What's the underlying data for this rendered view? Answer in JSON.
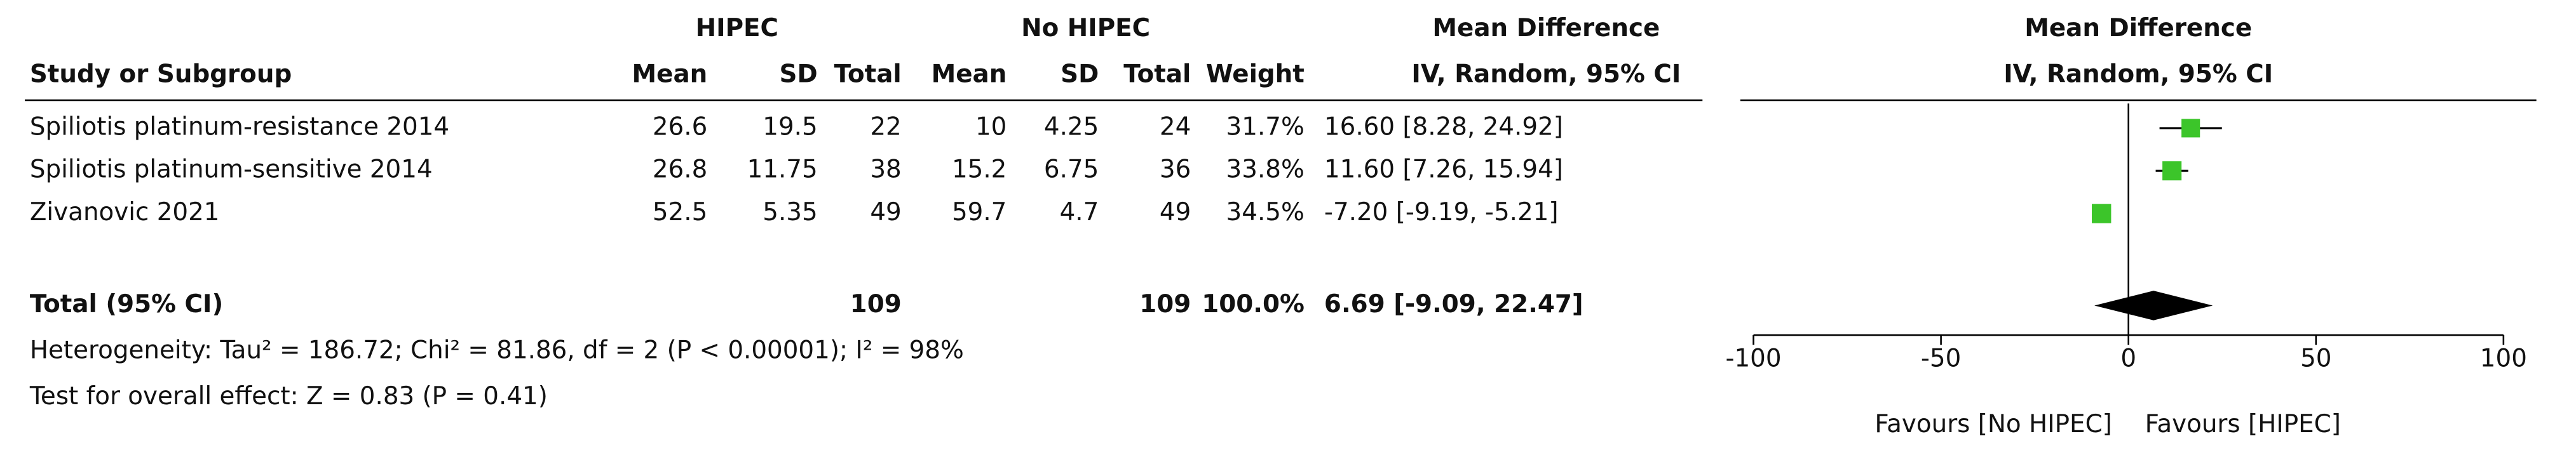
{
  "chart_data": {
    "type": "forest",
    "headers": {
      "group1": "HIPEC",
      "group2": "No HIPEC",
      "effect": "Mean Difference",
      "effect_method": "IV, Random, 95% CI",
      "plot": "Mean Difference",
      "plot_method": "IV, Random, 95% CI",
      "study": "Study or Subgroup",
      "mean1": "Mean",
      "sd1": "SD",
      "total1": "Total",
      "mean2": "Mean",
      "sd2": "SD",
      "total2": "Total",
      "weight": "Weight"
    },
    "studies": [
      {
        "name": "Spiliotis platinum-resistance 2014",
        "mean1": 26.6,
        "sd1": 19.5,
        "total1": 22,
        "mean2": 10,
        "sd2": 4.25,
        "total2": 24,
        "weight": 31.7,
        "weight_label": "31.7%",
        "md": 16.6,
        "lower": 8.28,
        "upper": 24.92,
        "md_label": "16.60 [8.28, 24.92]"
      },
      {
        "name": "Spiliotis platinum-sensitive 2014",
        "mean1": 26.8,
        "sd1": 11.75,
        "total1": 38,
        "mean2": 15.2,
        "sd2": 6.75,
        "total2": 36,
        "weight": 33.8,
        "weight_label": "33.8%",
        "md": 11.6,
        "lower": 7.26,
        "upper": 15.94,
        "md_label": "11.60 [7.26, 15.94]"
      },
      {
        "name": "Zivanovic 2021",
        "mean1": 52.5,
        "sd1": 5.35,
        "total1": 49,
        "mean2": 59.7,
        "sd2": 4.7,
        "total2": 49,
        "weight": 34.5,
        "weight_label": "34.5%",
        "md": -7.2,
        "lower": -9.19,
        "upper": -5.21,
        "md_label": "-7.20 [-9.19, -5.21]"
      }
    ],
    "total": {
      "name": "Total (95% CI)",
      "total1": 109,
      "total2": 109,
      "weight": 100,
      "weight_label": "100.0%",
      "md": 6.69,
      "lower": -9.09,
      "upper": 22.47,
      "md_label": "6.69 [-9.09, 22.47]"
    },
    "heterogeneity": "Heterogeneity: Tau² = 186.72; Chi² = 81.86, df = 2 (P < 0.00001); I² = 98%",
    "overall_effect": "Test for overall effect: Z = 0.83 (P = 0.41)",
    "xlim": [
      -100,
      100
    ],
    "xticks": [
      -100,
      -50,
      0,
      50,
      100
    ],
    "favours_left": "Favours [No HIPEC]",
    "favours_right": "Favours [HIPEC]",
    "marker_color": "#3cc52a",
    "diamond_color": "#000000"
  }
}
